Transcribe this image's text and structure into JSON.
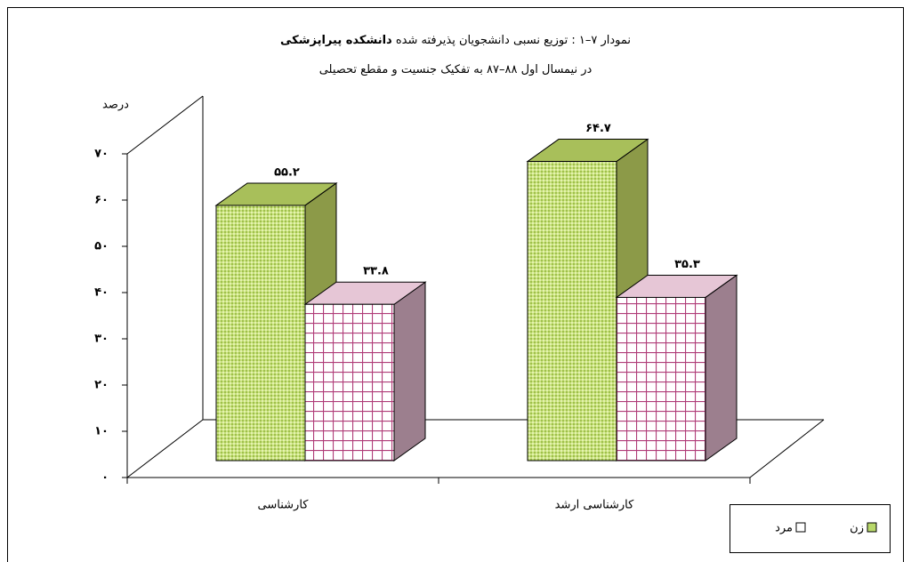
{
  "chart_data": {
    "type": "bar3d",
    "title": [
      "نمودار ۷–۱ : توزیع نسبی دانشجویان پذیرفته شده",
      "دانشکده پیراپزشکی"
    ],
    "subtitle": "در نیمسال اول ۸۸–۸۷ به تفکیک جنسیت و مقطع تحصیلی",
    "y_label": "درصد",
    "categories": [
      "کارشناسی",
      "کارشناسی ارشد"
    ],
    "series": [
      {
        "name": "زن",
        "color": "#b8d86a",
        "values": [
          55.2,
          64.7
        ],
        "value_labels": [
          "۵۵.۲",
          "۶۴.۷"
        ]
      },
      {
        "name": "مرد",
        "color": "#b03c78",
        "values": [
          33.8,
          35.3
        ],
        "value_labels": [
          "۳۳.۸",
          "۳۵.۳"
        ]
      }
    ],
    "ylim": [
      0,
      70
    ],
    "yticks": [
      {
        "value": 0,
        "label": "۰"
      },
      {
        "value": 10,
        "label": "۱۰"
      },
      {
        "value": 20,
        "label": "۲۰"
      },
      {
        "value": 30,
        "label": "۳۰"
      },
      {
        "value": 40,
        "label": "۴۰"
      },
      {
        "value": 50,
        "label": "۵۰"
      },
      {
        "value": 60,
        "label": "۶۰"
      },
      {
        "value": 70,
        "label": "۷۰"
      }
    ]
  }
}
